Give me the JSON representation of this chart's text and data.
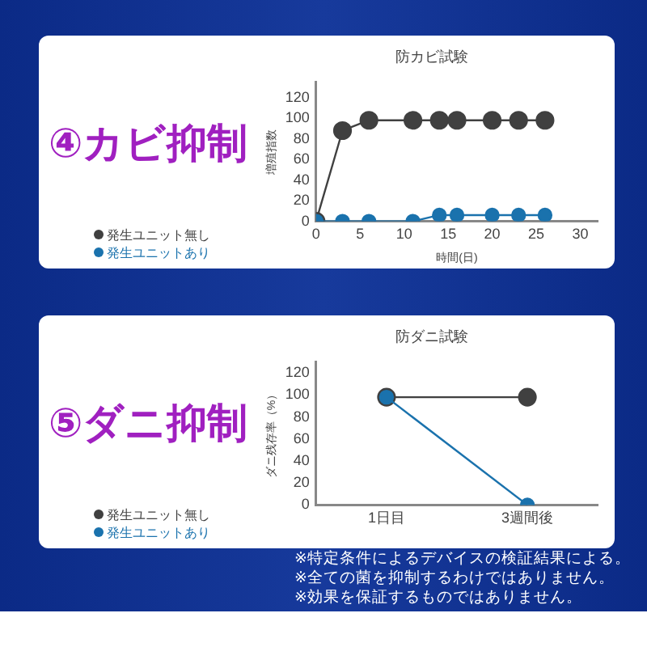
{
  "chart_data": [
    {
      "type": "line",
      "title": "防カビ試験",
      "xlabel": "時間(日)",
      "ylabel": "増殖指数",
      "annotations": [
        "④カビ抑制"
      ],
      "x": [
        0,
        3,
        6,
        11,
        14,
        16,
        20,
        23,
        26
      ],
      "xlim": [
        0,
        32
      ],
      "xticks": [
        0,
        5,
        10,
        15,
        20,
        25,
        30
      ],
      "ylim": [
        0,
        135
      ],
      "yticks": [
        0,
        20,
        40,
        60,
        80,
        100,
        120
      ],
      "grid": false,
      "legend": "bottom left",
      "marker": "circle",
      "series": [
        {
          "name": "発生ユニット無し",
          "color": "#404040",
          "values": [
            0,
            88,
            98,
            98,
            98,
            98,
            98,
            98,
            98
          ]
        },
        {
          "name": "発生ユニットあり",
          "color": "#1a72ad",
          "values": [
            0,
            0,
            0,
            0,
            6,
            6,
            6,
            6,
            6
          ]
        }
      ]
    },
    {
      "type": "line",
      "title": "防ダニ試験",
      "ylabel": "ダニ残存率（%）",
      "annotations": [
        "⑤ダニ抑制",
        "※特定条件によるデバイスの検証結果による。",
        "※全ての菌を抑制するわけではありません。",
        "※効果を保証するものではありません。"
      ],
      "categories": [
        "1日目",
        "3週間後"
      ],
      "ylim": [
        0,
        130
      ],
      "yticks": [
        0,
        20,
        40,
        60,
        80,
        100,
        120
      ],
      "grid": false,
      "legend": "bottom left",
      "marker": "circle",
      "series": [
        {
          "name": "発生ユニット無し",
          "color": "#404040",
          "values": [
            98,
            98
          ]
        },
        {
          "name": "発生ユニットあり",
          "color": "#1a72ad",
          "values": [
            98,
            0
          ]
        }
      ]
    }
  ]
}
